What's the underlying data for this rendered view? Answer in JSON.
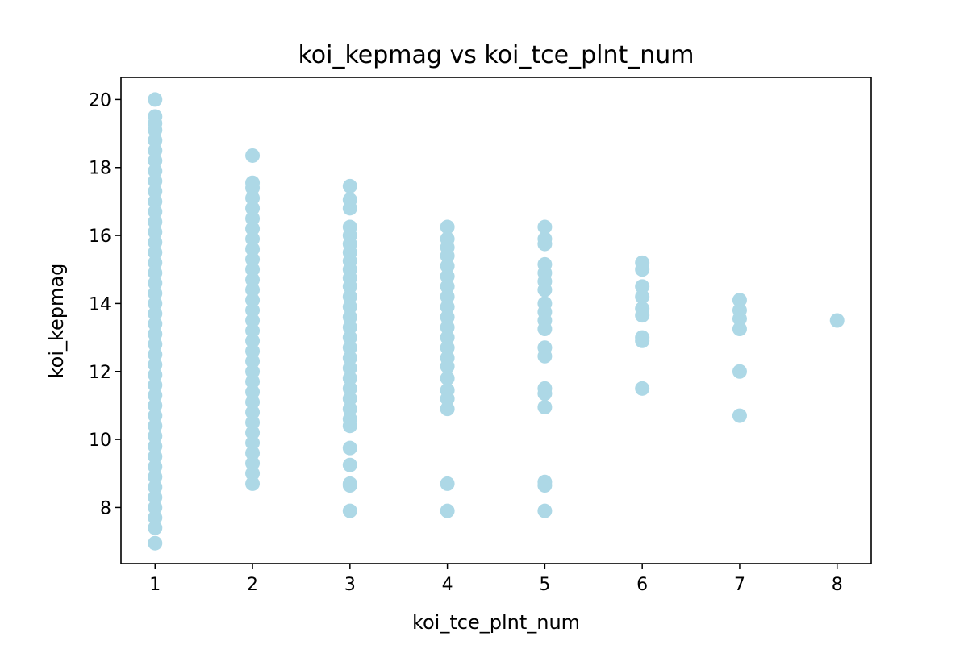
{
  "chart_data": {
    "type": "scatter",
    "title": "koi_kepmag vs koi_tce_plnt_num",
    "xlabel": "koi_tce_plnt_num",
    "ylabel": "koi_kepmag",
    "xlim": [
      0.65,
      8.35
    ],
    "ylim": [
      6.35,
      20.65
    ],
    "xticks": [
      1,
      2,
      3,
      4,
      5,
      6,
      7,
      8
    ],
    "yticks": [
      8,
      10,
      12,
      14,
      16,
      18,
      20
    ],
    "grid": false,
    "marker_color": "#add8e6",
    "points": [
      {
        "x": 1,
        "y": 20.0
      },
      {
        "x": 1,
        "y": 19.5
      },
      {
        "x": 1,
        "y": 19.3
      },
      {
        "x": 1,
        "y": 19.1
      },
      {
        "x": 1,
        "y": 18.8
      },
      {
        "x": 1,
        "y": 18.5
      },
      {
        "x": 1,
        "y": 18.2
      },
      {
        "x": 1,
        "y": 17.9
      },
      {
        "x": 1,
        "y": 17.6
      },
      {
        "x": 1,
        "y": 17.3
      },
      {
        "x": 1,
        "y": 17.0
      },
      {
        "x": 1,
        "y": 16.7
      },
      {
        "x": 1,
        "y": 16.4
      },
      {
        "x": 1,
        "y": 16.1
      },
      {
        "x": 1,
        "y": 15.8
      },
      {
        "x": 1,
        "y": 15.5
      },
      {
        "x": 1,
        "y": 15.2
      },
      {
        "x": 1,
        "y": 14.9
      },
      {
        "x": 1,
        "y": 14.6
      },
      {
        "x": 1,
        "y": 14.3
      },
      {
        "x": 1,
        "y": 14.0
      },
      {
        "x": 1,
        "y": 13.7
      },
      {
        "x": 1,
        "y": 13.4
      },
      {
        "x": 1,
        "y": 13.1
      },
      {
        "x": 1,
        "y": 12.8
      },
      {
        "x": 1,
        "y": 12.5
      },
      {
        "x": 1,
        "y": 12.2
      },
      {
        "x": 1,
        "y": 11.9
      },
      {
        "x": 1,
        "y": 11.6
      },
      {
        "x": 1,
        "y": 11.3
      },
      {
        "x": 1,
        "y": 11.0
      },
      {
        "x": 1,
        "y": 10.7
      },
      {
        "x": 1,
        "y": 10.4
      },
      {
        "x": 1,
        "y": 10.1
      },
      {
        "x": 1,
        "y": 9.8
      },
      {
        "x": 1,
        "y": 9.5
      },
      {
        "x": 1,
        "y": 9.2
      },
      {
        "x": 1,
        "y": 8.9
      },
      {
        "x": 1,
        "y": 8.6
      },
      {
        "x": 1,
        "y": 8.3
      },
      {
        "x": 1,
        "y": 8.0
      },
      {
        "x": 1,
        "y": 7.7
      },
      {
        "x": 1,
        "y": 7.4
      },
      {
        "x": 1,
        "y": 6.95
      },
      {
        "x": 2,
        "y": 18.35
      },
      {
        "x": 2,
        "y": 17.55
      },
      {
        "x": 2,
        "y": 17.4
      },
      {
        "x": 2,
        "y": 17.1
      },
      {
        "x": 2,
        "y": 16.8
      },
      {
        "x": 2,
        "y": 16.5
      },
      {
        "x": 2,
        "y": 16.2
      },
      {
        "x": 2,
        "y": 15.9
      },
      {
        "x": 2,
        "y": 15.6
      },
      {
        "x": 2,
        "y": 15.3
      },
      {
        "x": 2,
        "y": 15.0
      },
      {
        "x": 2,
        "y": 14.7
      },
      {
        "x": 2,
        "y": 14.4
      },
      {
        "x": 2,
        "y": 14.1
      },
      {
        "x": 2,
        "y": 13.8
      },
      {
        "x": 2,
        "y": 13.5
      },
      {
        "x": 2,
        "y": 13.2
      },
      {
        "x": 2,
        "y": 12.9
      },
      {
        "x": 2,
        "y": 12.6
      },
      {
        "x": 2,
        "y": 12.3
      },
      {
        "x": 2,
        "y": 12.0
      },
      {
        "x": 2,
        "y": 11.7
      },
      {
        "x": 2,
        "y": 11.4
      },
      {
        "x": 2,
        "y": 11.1
      },
      {
        "x": 2,
        "y": 10.8
      },
      {
        "x": 2,
        "y": 10.5
      },
      {
        "x": 2,
        "y": 10.2
      },
      {
        "x": 2,
        "y": 9.9
      },
      {
        "x": 2,
        "y": 9.6
      },
      {
        "x": 2,
        "y": 9.3
      },
      {
        "x": 2,
        "y": 9.0
      },
      {
        "x": 2,
        "y": 8.7
      },
      {
        "x": 3,
        "y": 17.45
      },
      {
        "x": 3,
        "y": 17.05
      },
      {
        "x": 3,
        "y": 16.8
      },
      {
        "x": 3,
        "y": 16.25
      },
      {
        "x": 3,
        "y": 16.0
      },
      {
        "x": 3,
        "y": 15.75
      },
      {
        "x": 3,
        "y": 15.5
      },
      {
        "x": 3,
        "y": 15.25
      },
      {
        "x": 3,
        "y": 15.0
      },
      {
        "x": 3,
        "y": 14.75
      },
      {
        "x": 3,
        "y": 14.5
      },
      {
        "x": 3,
        "y": 14.2
      },
      {
        "x": 3,
        "y": 13.9
      },
      {
        "x": 3,
        "y": 13.6
      },
      {
        "x": 3,
        "y": 13.3
      },
      {
        "x": 3,
        "y": 13.0
      },
      {
        "x": 3,
        "y": 12.7
      },
      {
        "x": 3,
        "y": 12.4
      },
      {
        "x": 3,
        "y": 12.1
      },
      {
        "x": 3,
        "y": 11.8
      },
      {
        "x": 3,
        "y": 11.5
      },
      {
        "x": 3,
        "y": 11.2
      },
      {
        "x": 3,
        "y": 10.9
      },
      {
        "x": 3,
        "y": 10.6
      },
      {
        "x": 3,
        "y": 10.4
      },
      {
        "x": 3,
        "y": 9.75
      },
      {
        "x": 3,
        "y": 9.25
      },
      {
        "x": 3,
        "y": 8.7
      },
      {
        "x": 3,
        "y": 8.65
      },
      {
        "x": 3,
        "y": 7.9
      },
      {
        "x": 4,
        "y": 16.25
      },
      {
        "x": 4,
        "y": 15.9
      },
      {
        "x": 4,
        "y": 15.65
      },
      {
        "x": 4,
        "y": 15.4
      },
      {
        "x": 4,
        "y": 15.1
      },
      {
        "x": 4,
        "y": 14.8
      },
      {
        "x": 4,
        "y": 14.5
      },
      {
        "x": 4,
        "y": 14.2
      },
      {
        "x": 4,
        "y": 13.9
      },
      {
        "x": 4,
        "y": 13.6
      },
      {
        "x": 4,
        "y": 13.3
      },
      {
        "x": 4,
        "y": 13.0
      },
      {
        "x": 4,
        "y": 12.7
      },
      {
        "x": 4,
        "y": 12.4
      },
      {
        "x": 4,
        "y": 12.15
      },
      {
        "x": 4,
        "y": 11.8
      },
      {
        "x": 4,
        "y": 11.45
      },
      {
        "x": 4,
        "y": 11.2
      },
      {
        "x": 4,
        "y": 10.9
      },
      {
        "x": 4,
        "y": 8.7
      },
      {
        "x": 4,
        "y": 7.9
      },
      {
        "x": 5,
        "y": 16.25
      },
      {
        "x": 5,
        "y": 15.9
      },
      {
        "x": 5,
        "y": 15.75
      },
      {
        "x": 5,
        "y": 15.15
      },
      {
        "x": 5,
        "y": 14.9
      },
      {
        "x": 5,
        "y": 14.65
      },
      {
        "x": 5,
        "y": 14.4
      },
      {
        "x": 5,
        "y": 14.0
      },
      {
        "x": 5,
        "y": 13.75
      },
      {
        "x": 5,
        "y": 13.5
      },
      {
        "x": 5,
        "y": 13.25
      },
      {
        "x": 5,
        "y": 12.7
      },
      {
        "x": 5,
        "y": 12.45
      },
      {
        "x": 5,
        "y": 11.5
      },
      {
        "x": 5,
        "y": 11.35
      },
      {
        "x": 5,
        "y": 10.95
      },
      {
        "x": 5,
        "y": 8.75
      },
      {
        "x": 5,
        "y": 8.65
      },
      {
        "x": 5,
        "y": 7.9
      },
      {
        "x": 6,
        "y": 15.2
      },
      {
        "x": 6,
        "y": 15.0
      },
      {
        "x": 6,
        "y": 14.5
      },
      {
        "x": 6,
        "y": 14.2
      },
      {
        "x": 6,
        "y": 13.85
      },
      {
        "x": 6,
        "y": 13.65
      },
      {
        "x": 6,
        "y": 13.0
      },
      {
        "x": 6,
        "y": 12.9
      },
      {
        "x": 6,
        "y": 11.5
      },
      {
        "x": 7,
        "y": 14.1
      },
      {
        "x": 7,
        "y": 13.8
      },
      {
        "x": 7,
        "y": 13.55
      },
      {
        "x": 7,
        "y": 13.25
      },
      {
        "x": 7,
        "y": 12.0
      },
      {
        "x": 7,
        "y": 10.7
      },
      {
        "x": 8,
        "y": 13.5
      }
    ]
  }
}
